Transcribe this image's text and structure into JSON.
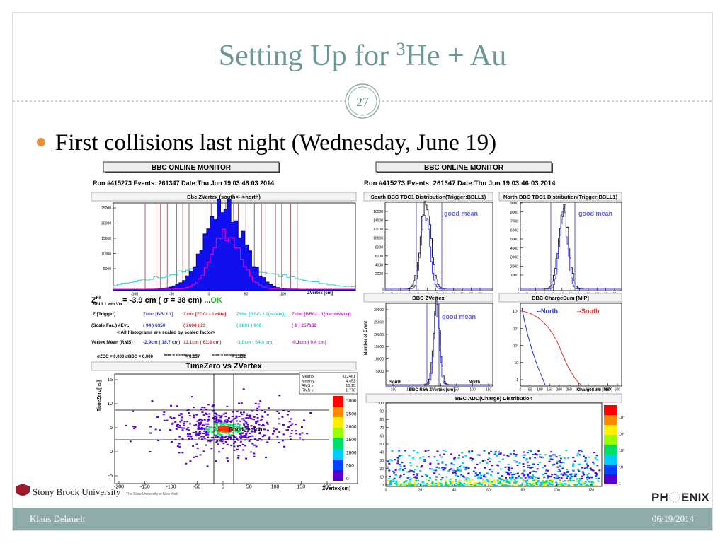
{
  "title": {
    "before": "Setting Up for ",
    "sup": "3",
    "after": "He + Au"
  },
  "slide_number": "27",
  "bullet": "First collisions last night (Wednesday, June 19)",
  "left_panel": {
    "header": "BBC ONLINE MONITOR",
    "run": "Run #415273 Events: 261347 Date:Thu Jun 19 03:46:03 2014",
    "zvertex_plot": {
      "title": "Bbc ZVertex (south<-->north)",
      "yticks": [
        "25000",
        "20000",
        "15000",
        "10000",
        "5000"
      ],
      "xticks": [
        "-100",
        "-50",
        "0",
        "50",
        "100"
      ],
      "notes": [
        "ZVertex [cm]"
      ]
    },
    "stats": {
      "fit": {
        "z": "Z",
        "sup": "Fit",
        "sub": "BBLL1 w/o Vtx",
        "text": "= -3.9 cm ( σ = 38 cm) ...",
        "status": "OK"
      },
      "trigger_row": [
        "Z   [Trigger]",
        "Zbbc [BBLL1]",
        "Zzdc [ZDCLL1wide]",
        "Zbbc [BSCLL1(noVtx)]",
        "Zbbc [BBCLL1(narrowVtx)]"
      ],
      "events_row": [
        "(Scale Fac.) #Evt.",
        "( 94 )  6350",
        "( 2668 )  23",
        "( 2891 )  640",
        "( 1 )  257132"
      ],
      "scale_note": "< All histograms are scaled by scaled factor>",
      "mean_row": [
        "Vertex Mean (RMS)",
        "-2.9cm ( 18.7 cm)",
        "11.1cm ( 61.8 cm)",
        "-1.0cm ( 54.9 cm)",
        "-0.1cm ( 9.4 cm)"
      ],
      "sigma_row": [
        "σZDC = 0.000  σBBC = 0.000",
        "beam in acceptance ZDC",
        "= 0.157",
        "beam in acceptance BBC",
        "= 1.032"
      ]
    },
    "timezero_plot": {
      "title": "TimeZero vs ZVertex",
      "yticks": [
        "15",
        "10",
        "5",
        "0",
        "-5"
      ],
      "xticks": [
        "-200",
        "-150",
        "-100",
        "-50",
        "0",
        "50",
        "100",
        "150",
        "200"
      ],
      "notes": [
        "TimeZero[ns]",
        "ZVertex[cm]",
        "Good region"
      ],
      "stat_box": [
        {
          "label": "Mean x",
          "value": "-0.2461"
        },
        {
          "label": "Mean y",
          "value": "4.452"
        },
        {
          "label": "RMS x",
          "value": "10.15"
        },
        {
          "label": "RMS y",
          "value": "1.778"
        }
      ],
      "colorbar": [
        "3000",
        "2500",
        "2000",
        "1500",
        "1000",
        "500",
        "0"
      ]
    }
  },
  "right_panel": {
    "header": "BBC ONLINE MONITOR",
    "run": "Run #415273 Events: 261347 Date:Thu Jun 19 03:46:03 2014",
    "south_tdc_plot": {
      "title": "South BBC TDC1 Distribution(Trigger:BBLL1)",
      "yticks": [
        "16000",
        "14000",
        "12000",
        "10000",
        "8000",
        "6000",
        "4000",
        "2000"
      ],
      "xticks": [
        "0",
        "2",
        "4",
        "6",
        "8",
        "10",
        "12",
        "14",
        "16",
        "18",
        "20",
        "22"
      ],
      "notes": [
        "good mean"
      ]
    },
    "north_tdc_plot": {
      "title": "North BBC TDC1 Distribution(Trigger:BBLL1)",
      "yticks": [
        "9000",
        "8000",
        "7000",
        "6000",
        "5000",
        "4000",
        "3000",
        "2000",
        "1000"
      ],
      "xticks": [
        "0",
        "2",
        "4",
        "6",
        "8",
        "10",
        "12",
        "14",
        "16",
        "18",
        "20",
        "22"
      ],
      "notes": [
        "good mean"
      ]
    },
    "zvertex_plot": {
      "title": "BBC ZVertex",
      "yticks": [
        "30000",
        "25000",
        "20000",
        "15000",
        "10000",
        "5000"
      ],
      "xticks": [
        "-150",
        "-100",
        "-50",
        "0",
        "50",
        "100",
        "150"
      ],
      "notes": [
        "Number of Event",
        "good mean",
        "South",
        "North",
        "BBC Raw ZVertex [cm]"
      ]
    },
    "chargesum_plot": {
      "title": "BBC ChargeSum [MIP]",
      "yticks": [
        "10⁴",
        "10³",
        "10²",
        "10",
        "1"
      ],
      "xticks": [
        "0",
        "50",
        "100",
        "150",
        "200",
        "250",
        "300",
        "350",
        "400",
        "450",
        "500"
      ],
      "notes": [
        "--North",
        "--South",
        "ChargeSum [MIP]"
      ]
    },
    "adc_plot": {
      "title": "BBC ADC(Charge) Distribution",
      "yticks": [
        "100",
        "90",
        "80",
        "70",
        "60",
        "50",
        "40",
        "30",
        "20",
        "10",
        "0"
      ],
      "xticks": [
        "0",
        "20",
        "40",
        "60",
        "80",
        "100",
        "120"
      ],
      "colorbar": [
        "10⁴",
        "10³",
        "10²",
        "10",
        "1"
      ]
    }
  },
  "logos": {
    "stony_brook": "Stony Brook University",
    "stony_brook_sub": "The State University of New York",
    "phenix_left": "PH",
    "phenix_right": "ENIX"
  },
  "footer": {
    "author": "Klaus Dehmelt",
    "date": "06/19/2014"
  }
}
